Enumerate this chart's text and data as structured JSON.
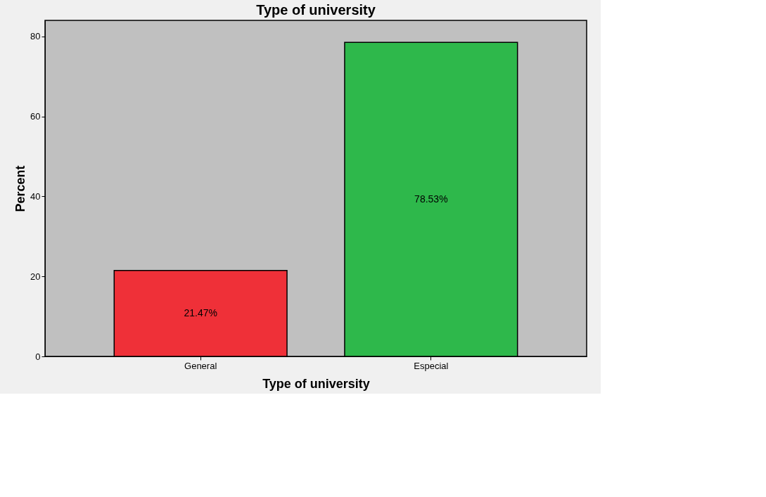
{
  "chart_data": {
    "type": "bar",
    "title": "Type of university",
    "xlabel": "Type of university",
    "ylabel": "Percent",
    "categories": [
      "General",
      "Especial"
    ],
    "values": [
      21.47,
      78.53
    ],
    "colors": [
      "#ef3038",
      "#2eb84b"
    ],
    "value_labels": [
      "21.47%",
      "78.53%"
    ],
    "ylim": [
      0,
      84
    ],
    "yticks": [
      0,
      20,
      40,
      60,
      80
    ],
    "grid": false
  }
}
